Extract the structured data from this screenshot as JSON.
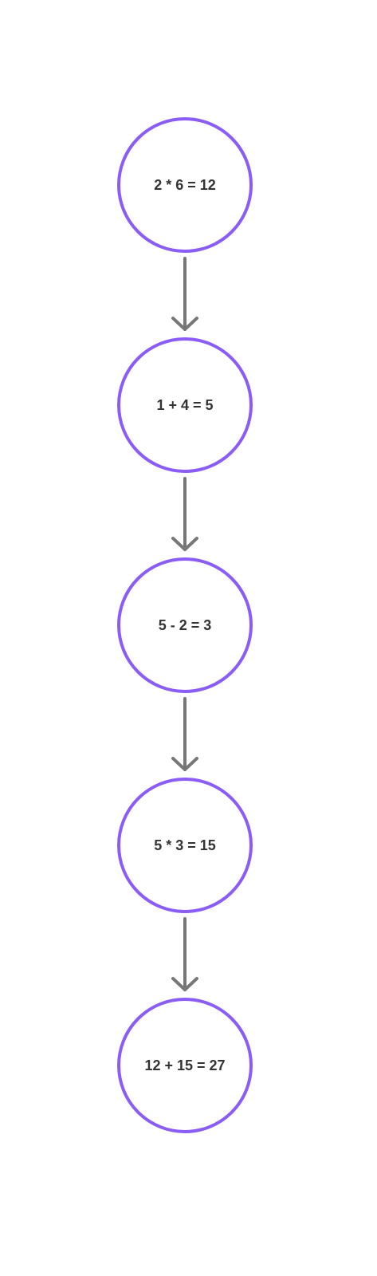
{
  "diagram": {
    "type": "flowchart",
    "colors": {
      "node_stroke": "#8b5cf6",
      "node_fill": "#ffffff",
      "edge": "#777777",
      "label": "#333333",
      "background": "#ffffff"
    },
    "nodes": [
      {
        "id": "n1",
        "label": "2 * 6 = 12"
      },
      {
        "id": "n2",
        "label": "1 + 4 = 5"
      },
      {
        "id": "n3",
        "label": "5 - 2 = 3"
      },
      {
        "id": "n4",
        "label": "5 * 3 = 15"
      },
      {
        "id": "n5",
        "label": "12 + 15 = 27"
      }
    ],
    "edges": [
      {
        "from": "n1",
        "to": "n2"
      },
      {
        "from": "n2",
        "to": "n3"
      },
      {
        "from": "n3",
        "to": "n4"
      },
      {
        "from": "n4",
        "to": "n5"
      }
    ]
  }
}
